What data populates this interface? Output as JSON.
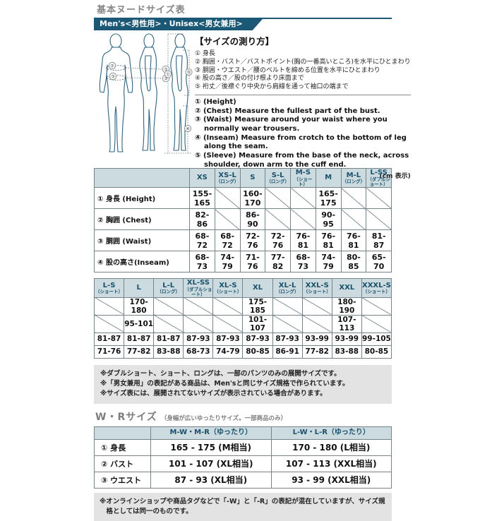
{
  "colors": {
    "teal": "#1b5875",
    "header_bg": "#ccdbdf",
    "header_text": "#19506b",
    "note_bg": "#e3e3e3",
    "figure_stroke": "#2f637f"
  },
  "page": {
    "title": "基本ヌードサイズ表",
    "banner": "Men's<男性用>・Unisex<男女兼用>",
    "cm_note": "(cm 表示)"
  },
  "figure": {
    "marks": {
      "height": "①",
      "chest": "②",
      "waist": "③",
      "inseam": "④",
      "sleeve": "⑤"
    }
  },
  "instructions": {
    "heading": "【サイズの測り方】",
    "jp_items": [
      "① 身長",
      "② 胸囲・バスト／バストポイント(胸の一番高いところ)を水平にひとまわり",
      "③ 胴囲・ウエスト／腰のベルトを締める位置を水平にひとまわり",
      "④ 股の高さ／股の付け根より床面まで",
      "⑤ 裄丈／後襟ぐり中央から肩線を通って袖口の端まで"
    ],
    "en_items": [
      "① (Height)",
      "② (Chest) Measure the fullest part of the bust.",
      "③ (Waist) Measure around your waist where you normally wear trousers.",
      "④ (Inseam) Measure from crotch to the bottom of leg along the seam.",
      "⑤ (Sleeve) Measure from the base of the neck, across shoulder, down arm to the cuff end."
    ]
  },
  "size_table_upper": {
    "headers": [
      {
        "label": "",
        "sub": ""
      },
      {
        "label": "XS",
        "sub": ""
      },
      {
        "label": "XS-L",
        "sub": "（ロング）"
      },
      {
        "label": "S",
        "sub": ""
      },
      {
        "label": "S-L",
        "sub": "（ロング）"
      },
      {
        "label": "M-S",
        "sub": "（ショート）"
      },
      {
        "label": "M",
        "sub": ""
      },
      {
        "label": "M-L",
        "sub": "（ロング）"
      },
      {
        "label": "L-SS",
        "sub": "（ダブルショート）"
      }
    ],
    "rows": [
      {
        "label": "① 身長 (Height)",
        "cells": [
          "155-165",
          "",
          "160-170",
          "",
          "",
          "165-175",
          "",
          ""
        ]
      },
      {
        "label": "② 胸囲 (Chest)",
        "cells": [
          "82-86",
          "",
          "86-90",
          "",
          "",
          "90-95",
          "",
          ""
        ]
      },
      {
        "label": "③ 胴囲 (Waist)",
        "cells": [
          "68-72",
          "68-72",
          "72-76",
          "72-76",
          "76-81",
          "76-81",
          "76-81",
          "81-87"
        ]
      },
      {
        "label": "④ 股の高さ(Inseam)",
        "cells": [
          "68-73",
          "74-79",
          "71-76",
          "77-82",
          "68-73",
          "74-79",
          "80-85",
          "65-70"
        ]
      }
    ]
  },
  "size_table_lower": {
    "headers": [
      {
        "label": "L-S",
        "sub": "（ショート）"
      },
      {
        "label": "L",
        "sub": ""
      },
      {
        "label": "L-L",
        "sub": "（ロング）"
      },
      {
        "label": "XL-SS",
        "sub": "（ダブルショート）"
      },
      {
        "label": "XL-S",
        "sub": "（ショート）"
      },
      {
        "label": "XL",
        "sub": ""
      },
      {
        "label": "XL-L",
        "sub": "（ロング）"
      },
      {
        "label": "XXL-S",
        "sub": "（ショート）"
      },
      {
        "label": "XXL",
        "sub": ""
      },
      {
        "label": "XXXL-S",
        "sub": "（ショート）"
      }
    ],
    "rows": [
      {
        "cells": [
          "",
          "170-180",
          "",
          "",
          "",
          "175-185",
          "",
          "",
          "180-190",
          ""
        ]
      },
      {
        "cells": [
          "",
          "95-101",
          "",
          "",
          "",
          "101-107",
          "",
          "",
          "107-113",
          ""
        ]
      },
      {
        "cells": [
          "81-87",
          "81-87",
          "81-87",
          "87-93",
          "87-93",
          "87-93",
          "87-93",
          "93-99",
          "93-99",
          "99-105"
        ]
      },
      {
        "cells": [
          "71-76",
          "77-82",
          "83-88",
          "68-73",
          "74-79",
          "80-85",
          "86-91",
          "77-82",
          "83-88",
          "80-85"
        ]
      }
    ]
  },
  "notes": [
    "※ダブルショート、ショート、ロングは、一部のパンツのみの展開サイズです。",
    "※「男女兼用」の表記がある商品は、Men'sと同じサイズ規格で作られています。",
    "※サイズ表には、展開されてないサイズが表示されている場合があります。"
  ],
  "wr_section": {
    "heading": "W・Rサイズ",
    "heading_note": "（身幅が広いゆったりサイズ。一部商品のみ）",
    "table": {
      "headers": [
        {
          "label": "",
          "sub": ""
        },
        {
          "label": "M-W・M-R（ゆったり）",
          "sub": ""
        },
        {
          "label": "L-W・L-R（ゆったり）",
          "sub": ""
        }
      ],
      "rows": [
        {
          "label": "① 身長",
          "cells": [
            "165 - 175 (M相当)",
            "170 - 180 (L相当)"
          ]
        },
        {
          "label": "② バスト",
          "cells": [
            "101 - 107 (XL相当)",
            "107 - 113 (XXL相当)"
          ]
        },
        {
          "label": "③ ウエスト",
          "cells": [
            "87 - 93 (XL相当)",
            "93 - 99 (XXL相当)"
          ]
        }
      ]
    },
    "footnote": "※オンラインショップや商品タグなどで「-W」と「-R」の表記が混在していますが、サイズ規格としては同一のものです。"
  }
}
